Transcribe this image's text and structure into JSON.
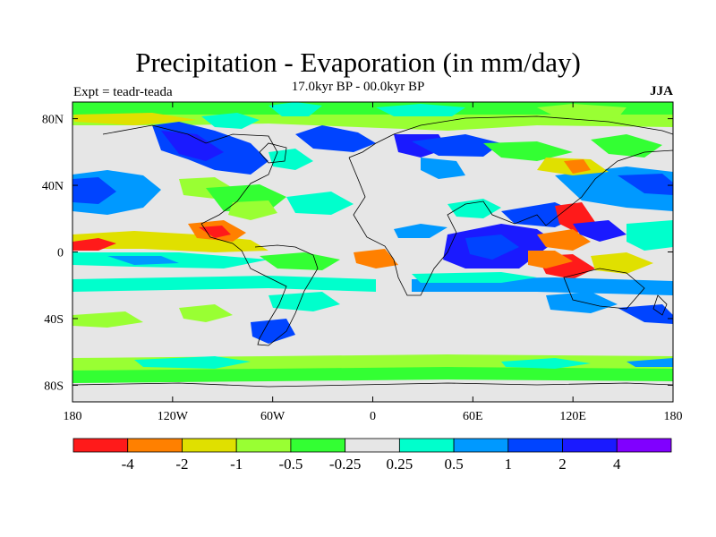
{
  "title": "Precipitation - Evaporation (in mm/day)",
  "subtitle": "17.0kyr BP - 00.0kyr BP",
  "left_label": "Expt = teadr-teada",
  "right_label": "JJA",
  "map": {
    "lon_range": [
      -180,
      180
    ],
    "lat_range": [
      -90,
      90
    ],
    "background_color": "#e6e6e6",
    "x_ticks": [
      {
        "value": -180,
        "label": "180"
      },
      {
        "value": -120,
        "label": "120W"
      },
      {
        "value": -60,
        "label": "60W"
      },
      {
        "value": 0,
        "label": "0"
      },
      {
        "value": 60,
        "label": "60E"
      },
      {
        "value": 120,
        "label": "120E"
      },
      {
        "value": 180,
        "label": "180"
      }
    ],
    "y_ticks": [
      {
        "value": 80,
        "label": "80N"
      },
      {
        "value": 40,
        "label": "40N"
      },
      {
        "value": 0,
        "label": "0"
      },
      {
        "value": -40,
        "label": "40S"
      },
      {
        "value": -80,
        "label": "80S"
      }
    ]
  },
  "colorbar": {
    "colors": [
      "#ff1a1a",
      "#ff8000",
      "#e0e000",
      "#99ff33",
      "#33ff33",
      "#e6e6e6",
      "#00ffcc",
      "#0099ff",
      "#0044ff",
      "#1a1aff",
      "#8000ff"
    ],
    "labels": [
      "-4",
      "-2",
      "-1",
      "-0.5",
      "-0.25",
      "0.25",
      "0.5",
      "1",
      "2",
      "4"
    ]
  }
}
